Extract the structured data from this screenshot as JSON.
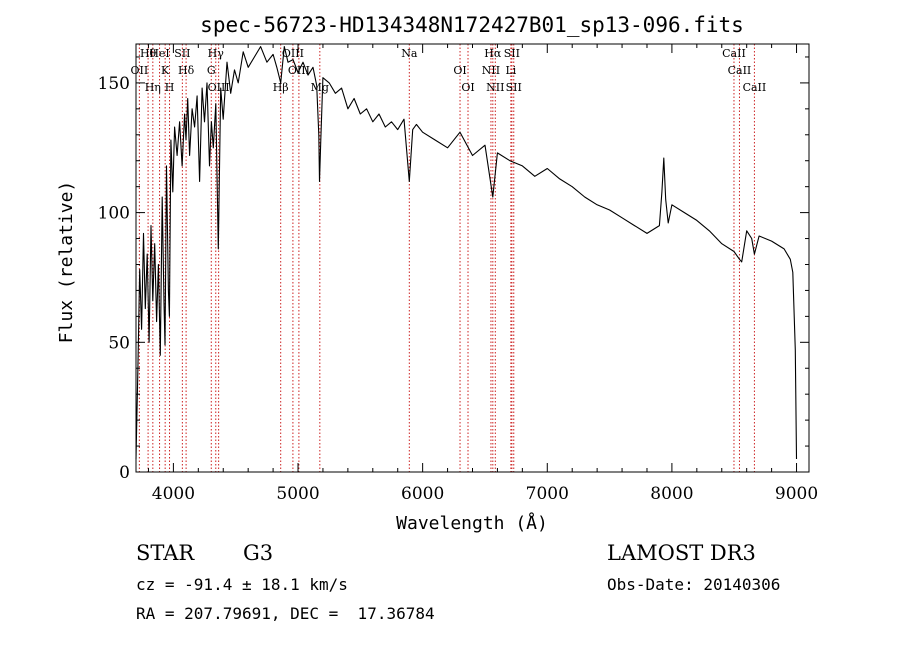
{
  "chart_data": {
    "type": "line",
    "title": "spec-56723-HD134348N172427B01_sp13-096.fits",
    "xlabel": "Wavelength (Å)",
    "ylabel": "Flux (relative)",
    "xlim": [
      3700,
      9100
    ],
    "ylim": [
      0,
      165
    ],
    "x_ticks": [
      4000,
      5000,
      6000,
      7000,
      8000,
      9000
    ],
    "x_tick_labels": [
      "4000",
      "5000",
      "6000",
      "7000",
      "8000",
      "9000"
    ],
    "y_ticks": [
      0,
      50,
      100,
      150
    ],
    "y_tick_labels": [
      "0",
      "50",
      "100",
      "150"
    ],
    "series": [
      {
        "name": "flux",
        "x": [
          3700,
          3715,
          3730,
          3745,
          3760,
          3775,
          3790,
          3805,
          3820,
          3835,
          3850,
          3865,
          3880,
          3895,
          3910,
          3925,
          3933,
          3945,
          3960,
          3968,
          3980,
          3995,
          4010,
          4030,
          4050,
          4070,
          4090,
          4101,
          4115,
          4130,
          4150,
          4170,
          4190,
          4210,
          4230,
          4250,
          4270,
          4290,
          4305,
          4320,
          4340,
          4360,
          4380,
          4400,
          4430,
          4460,
          4490,
          4520,
          4560,
          4600,
          4650,
          4700,
          4750,
          4800,
          4830,
          4861,
          4890,
          4920,
          4960,
          5000,
          5040,
          5080,
          5120,
          5150,
          5167,
          5172,
          5183,
          5200,
          5250,
          5300,
          5350,
          5400,
          5450,
          5500,
          5550,
          5600,
          5650,
          5700,
          5750,
          5800,
          5850,
          5893,
          5920,
          5950,
          6000,
          6100,
          6200,
          6300,
          6400,
          6500,
          6563,
          6600,
          6700,
          6800,
          6900,
          7000,
          7100,
          7200,
          7300,
          7400,
          7500,
          7600,
          7700,
          7800,
          7900,
          7920,
          7935,
          7950,
          7970,
          8000,
          8100,
          8200,
          8300,
          8400,
          8498,
          8542,
          8560,
          8600,
          8640,
          8662,
          8700,
          8800,
          8900,
          8950,
          8970,
          8990,
          9000
        ],
        "y": [
          5,
          40,
          78,
          55,
          92,
          63,
          84,
          50,
          95,
          66,
          88,
          58,
          80,
          45,
          106,
          65,
          49,
          118,
          70,
          60,
          128,
          108,
          133,
          122,
          135,
          118,
          138,
          128,
          144,
          122,
          140,
          133,
          145,
          112,
          148,
          135,
          150,
          118,
          135,
          125,
          142,
          86,
          148,
          136,
          158,
          146,
          155,
          150,
          162,
          156,
          160,
          164,
          158,
          161,
          156,
          150,
          164,
          158,
          159,
          154,
          158,
          153,
          156,
          149,
          130,
          112,
          128,
          152,
          150,
          146,
          148,
          140,
          144,
          138,
          140,
          135,
          138,
          133,
          135,
          132,
          136,
          112,
          132,
          134,
          131,
          128,
          125,
          131,
          122,
          126,
          106,
          123,
          120,
          118,
          114,
          117,
          113,
          110,
          106,
          103,
          101,
          98,
          95,
          92,
          95,
          108,
          121,
          105,
          96,
          103,
          100,
          97,
          93,
          88,
          85,
          82,
          81,
          93,
          90,
          84,
          91,
          89,
          86,
          82,
          77,
          47,
          5
        ]
      }
    ],
    "lines": [
      {
        "label": "Hθ",
        "wavelength": 3797
      },
      {
        "label": "OII",
        "wavelength": 3727
      },
      {
        "label": "Hη",
        "wavelength": 3835
      },
      {
        "label": "HeI",
        "wavelength": 3889
      },
      {
        "label": "K",
        "wavelength": 3934
      },
      {
        "label": "H",
        "wavelength": 3969
      },
      {
        "label": "SII",
        "wavelength": 4072
      },
      {
        "label": "Hδ",
        "wavelength": 4102
      },
      {
        "label": "OIII",
        "wavelength": 4363
      },
      {
        "label": "Hγ",
        "wavelength": 4340
      },
      {
        "label": "G",
        "wavelength": 4304
      },
      {
        "label": "Hβ",
        "wavelength": 4861
      },
      {
        "label": "OIII",
        "wavelength": 4959
      },
      {
        "label": "OIII",
        "wavelength": 5007
      },
      {
        "label": "Mg",
        "wavelength": 5175
      },
      {
        "label": "Na",
        "wavelength": 5893
      },
      {
        "label": "OI",
        "wavelength": 6300
      },
      {
        "label": "OI",
        "wavelength": 6364
      },
      {
        "label": "Hα",
        "wavelength": 6563
      },
      {
        "label": "NII",
        "wavelength": 6548
      },
      {
        "label": "NII",
        "wavelength": 6583
      },
      {
        "label": "SII",
        "wavelength": 6716
      },
      {
        "label": "Li",
        "wavelength": 6708
      },
      {
        "label": "SII",
        "wavelength": 6731
      },
      {
        "label": "CaII",
        "wavelength": 8498
      },
      {
        "label": "CaII",
        "wavelength": 8542
      },
      {
        "label": "CaII",
        "wavelength": 8662
      }
    ],
    "line_color": "#cc2222"
  },
  "info": {
    "object_type": "STAR",
    "subclass": "G3",
    "survey": "LAMOST DR3",
    "redshift": "cz = -91.4 ± 18.1 km/s",
    "obs_date": "Obs-Date: 20140306",
    "coords": "RA = 207.79691, DEC =  17.36784"
  }
}
